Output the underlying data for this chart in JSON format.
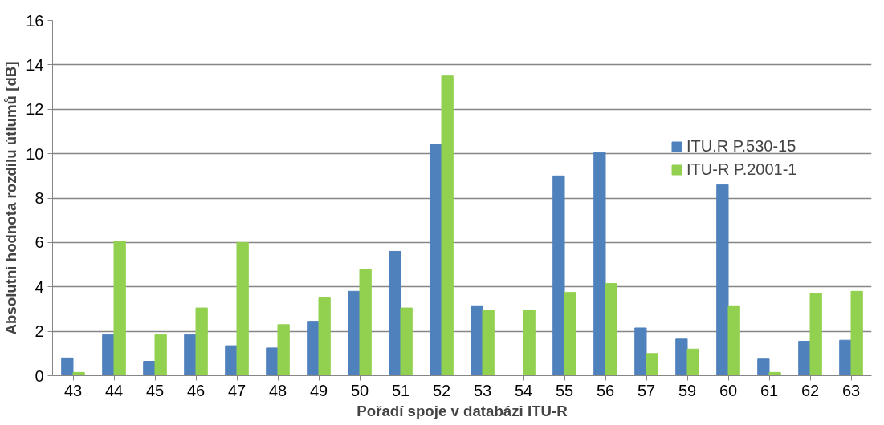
{
  "chart_data": {
    "type": "bar",
    "xlabel": "Pořadí spoje v databázi ITU-R",
    "ylabel": "Absolutní hodnota rozdílu útlumů [dB]",
    "categories": [
      "43",
      "44",
      "45",
      "46",
      "47",
      "48",
      "49",
      "50",
      "51",
      "52",
      "53",
      "54",
      "55",
      "56",
      "57",
      "59",
      "60",
      "61",
      "62",
      "63"
    ],
    "series": [
      {
        "name": "ITU.R P.530-15",
        "color": "#4f81bd",
        "values": [
          0.8,
          1.85,
          0.65,
          1.85,
          1.35,
          1.25,
          2.45,
          3.8,
          5.6,
          10.4,
          3.15,
          0,
          9.0,
          10.05,
          2.15,
          1.65,
          8.6,
          0.75,
          1.55,
          1.6
        ]
      },
      {
        "name": "ITU-R P.2001-1",
        "color": "#92d050",
        "values": [
          0.15,
          6.05,
          1.85,
          3.05,
          6.0,
          2.3,
          3.5,
          4.8,
          3.05,
          13.5,
          2.95,
          2.95,
          3.75,
          4.15,
          1.0,
          1.2,
          3.15,
          0.15,
          3.7,
          3.8
        ]
      }
    ],
    "ylim": [
      0,
      16
    ],
    "yticks": [
      0,
      2,
      4,
      6,
      8,
      10,
      12,
      14,
      16
    ],
    "grid": "y",
    "legend": "right"
  }
}
